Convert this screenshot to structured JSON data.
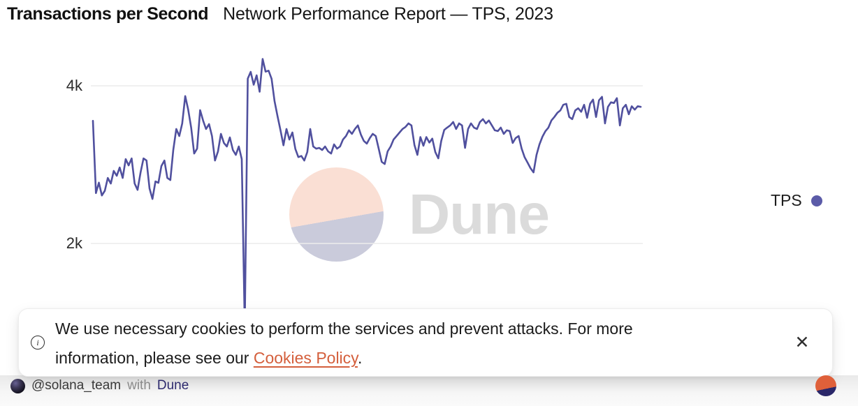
{
  "header": {
    "title": "Transactions per Second",
    "subtitle": "Network Performance Report — TPS, 2023"
  },
  "chart_data": {
    "type": "line",
    "title": "Transactions per Second",
    "subtitle": "Network Performance Report — TPS, 2023",
    "ylabel": "",
    "xlabel": "",
    "grid": "horizontal",
    "line_color": "#50509e",
    "y_axis": {
      "tick_labels": [
        "4k",
        "2k"
      ],
      "tick_values": [
        4000,
        2000
      ],
      "visible_range": [
        1170,
        4470
      ]
    },
    "legend": {
      "label": "TPS",
      "dot_color": "#5b5ba8",
      "position": "right"
    },
    "series": [
      {
        "name": "TPS",
        "values": [
          3556,
          2639,
          2772,
          2609,
          2668,
          2831,
          2760,
          2920,
          2858,
          2964,
          2831,
          3070,
          2990,
          3079,
          2760,
          2680,
          2902,
          3079,
          3052,
          2698,
          2565,
          2787,
          2769,
          2982,
          3052,
          2831,
          2804,
          3186,
          3452,
          3363,
          3523,
          3869,
          3700,
          3470,
          3141,
          3203,
          3691,
          3558,
          3452,
          3514,
          3363,
          3052,
          3168,
          3390,
          3274,
          3230,
          3345,
          3186,
          3124,
          3230,
          3070,
          950,
          4090,
          4177,
          4014,
          4133,
          3925,
          4340,
          4180,
          4192,
          4089,
          3808,
          3615,
          3438,
          3245,
          3452,
          3319,
          3408,
          3200,
          3096,
          3110,
          3052,
          3159,
          3452,
          3230,
          3203,
          3212,
          3186,
          3230,
          3168,
          3141,
          3257,
          3203,
          3230,
          3319,
          3363,
          3435,
          3390,
          3452,
          3497,
          3381,
          3301,
          3266,
          3337,
          3390,
          3363,
          3203,
          3035,
          3008,
          3168,
          3230,
          3319,
          3363,
          3408,
          3452,
          3479,
          3523,
          3497,
          3248,
          3124,
          3350,
          3240,
          3350,
          3280,
          3330,
          3160,
          3080,
          3300,
          3440,
          3470,
          3497,
          3541,
          3452,
          3523,
          3497,
          3212,
          3452,
          3523,
          3470,
          3452,
          3541,
          3577,
          3523,
          3560,
          3497,
          3435,
          3426,
          3470,
          3390,
          3435,
          3426,
          3275,
          3337,
          3363,
          3203,
          3096,
          3026,
          2955,
          2902,
          3124,
          3257,
          3355,
          3426,
          3470,
          3560,
          3604,
          3657,
          3688,
          3759,
          3772,
          3604,
          3577,
          3688,
          3715,
          3670,
          3759,
          3595,
          3772,
          3825,
          3604,
          3816,
          3860,
          3523,
          3733,
          3790,
          3781,
          3843,
          3497,
          3715,
          3759,
          3639,
          3741,
          3697,
          3741,
          3733
        ]
      }
    ]
  },
  "watermark": {
    "brand": "Dune"
  },
  "cookie_banner": {
    "info_icon": "i",
    "line1": "We use necessary cookies to perform the services and prevent attacks. For more",
    "line2_before_link": "information, please see our ",
    "link_text": "Cookies Policy",
    "line2_after_link": ".",
    "link_color": "#d45f3c",
    "close_icon": "✕"
  },
  "footer": {
    "author": "@solana_team",
    "connector": "with",
    "brand": "Dune",
    "logo_colors": {
      "orange": "#df603a",
      "navy": "#2a2769"
    }
  }
}
